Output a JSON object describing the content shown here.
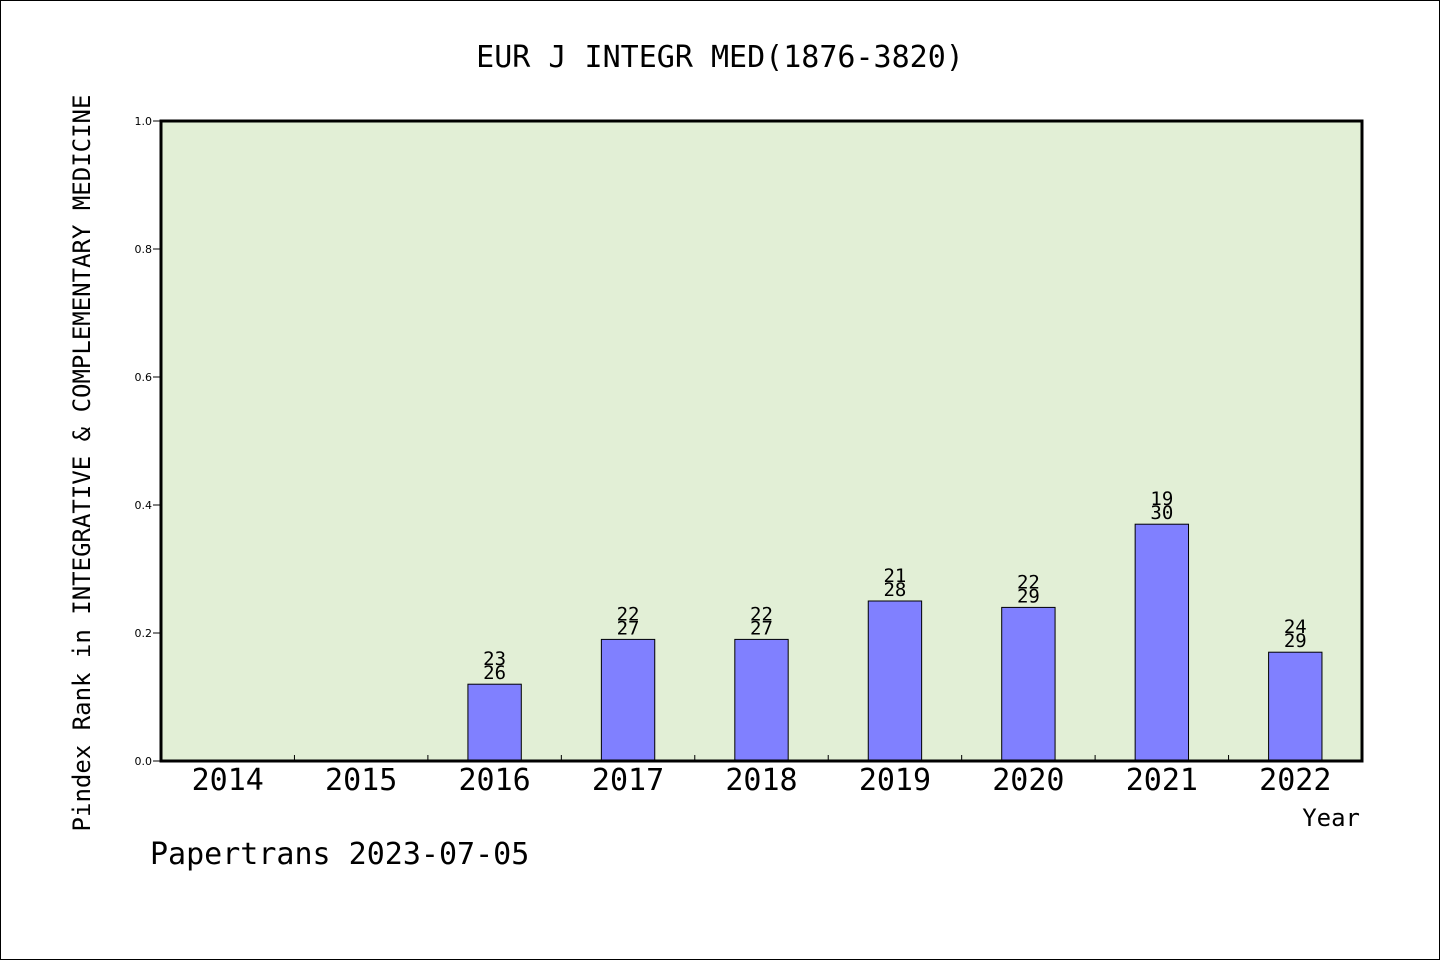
{
  "chart_data": {
    "type": "bar",
    "title": "EUR J INTEGR MED(1876-3820)",
    "xlabel": "Year",
    "ylabel": "Pindex Rank in INTEGRATIVE & COMPLEMENTARY MEDICINE",
    "ylim": [
      0,
      1.0
    ],
    "yticks": [
      "0.0",
      "0.2",
      "0.4",
      "0.6",
      "0.8",
      "1.0"
    ],
    "categories": [
      "2014",
      "2015",
      "2016",
      "2017",
      "2018",
      "2019",
      "2020",
      "2021",
      "2022"
    ],
    "values": [
      null,
      null,
      0.12,
      0.19,
      0.19,
      0.25,
      0.24,
      0.37,
      0.17
    ],
    "labels_top": [
      "",
      "",
      "23",
      "22",
      "22",
      "21",
      "22",
      "19",
      "24"
    ],
    "labels_bottom": [
      "",
      "",
      "26",
      "27",
      "27",
      "28",
      "29",
      "30",
      "29"
    ],
    "grid": false,
    "colors": {
      "bar": "#8080ff",
      "plot_bg": "#e2efd6",
      "axis": "#000000"
    }
  },
  "footer": "Papertrans 2023-07-05"
}
